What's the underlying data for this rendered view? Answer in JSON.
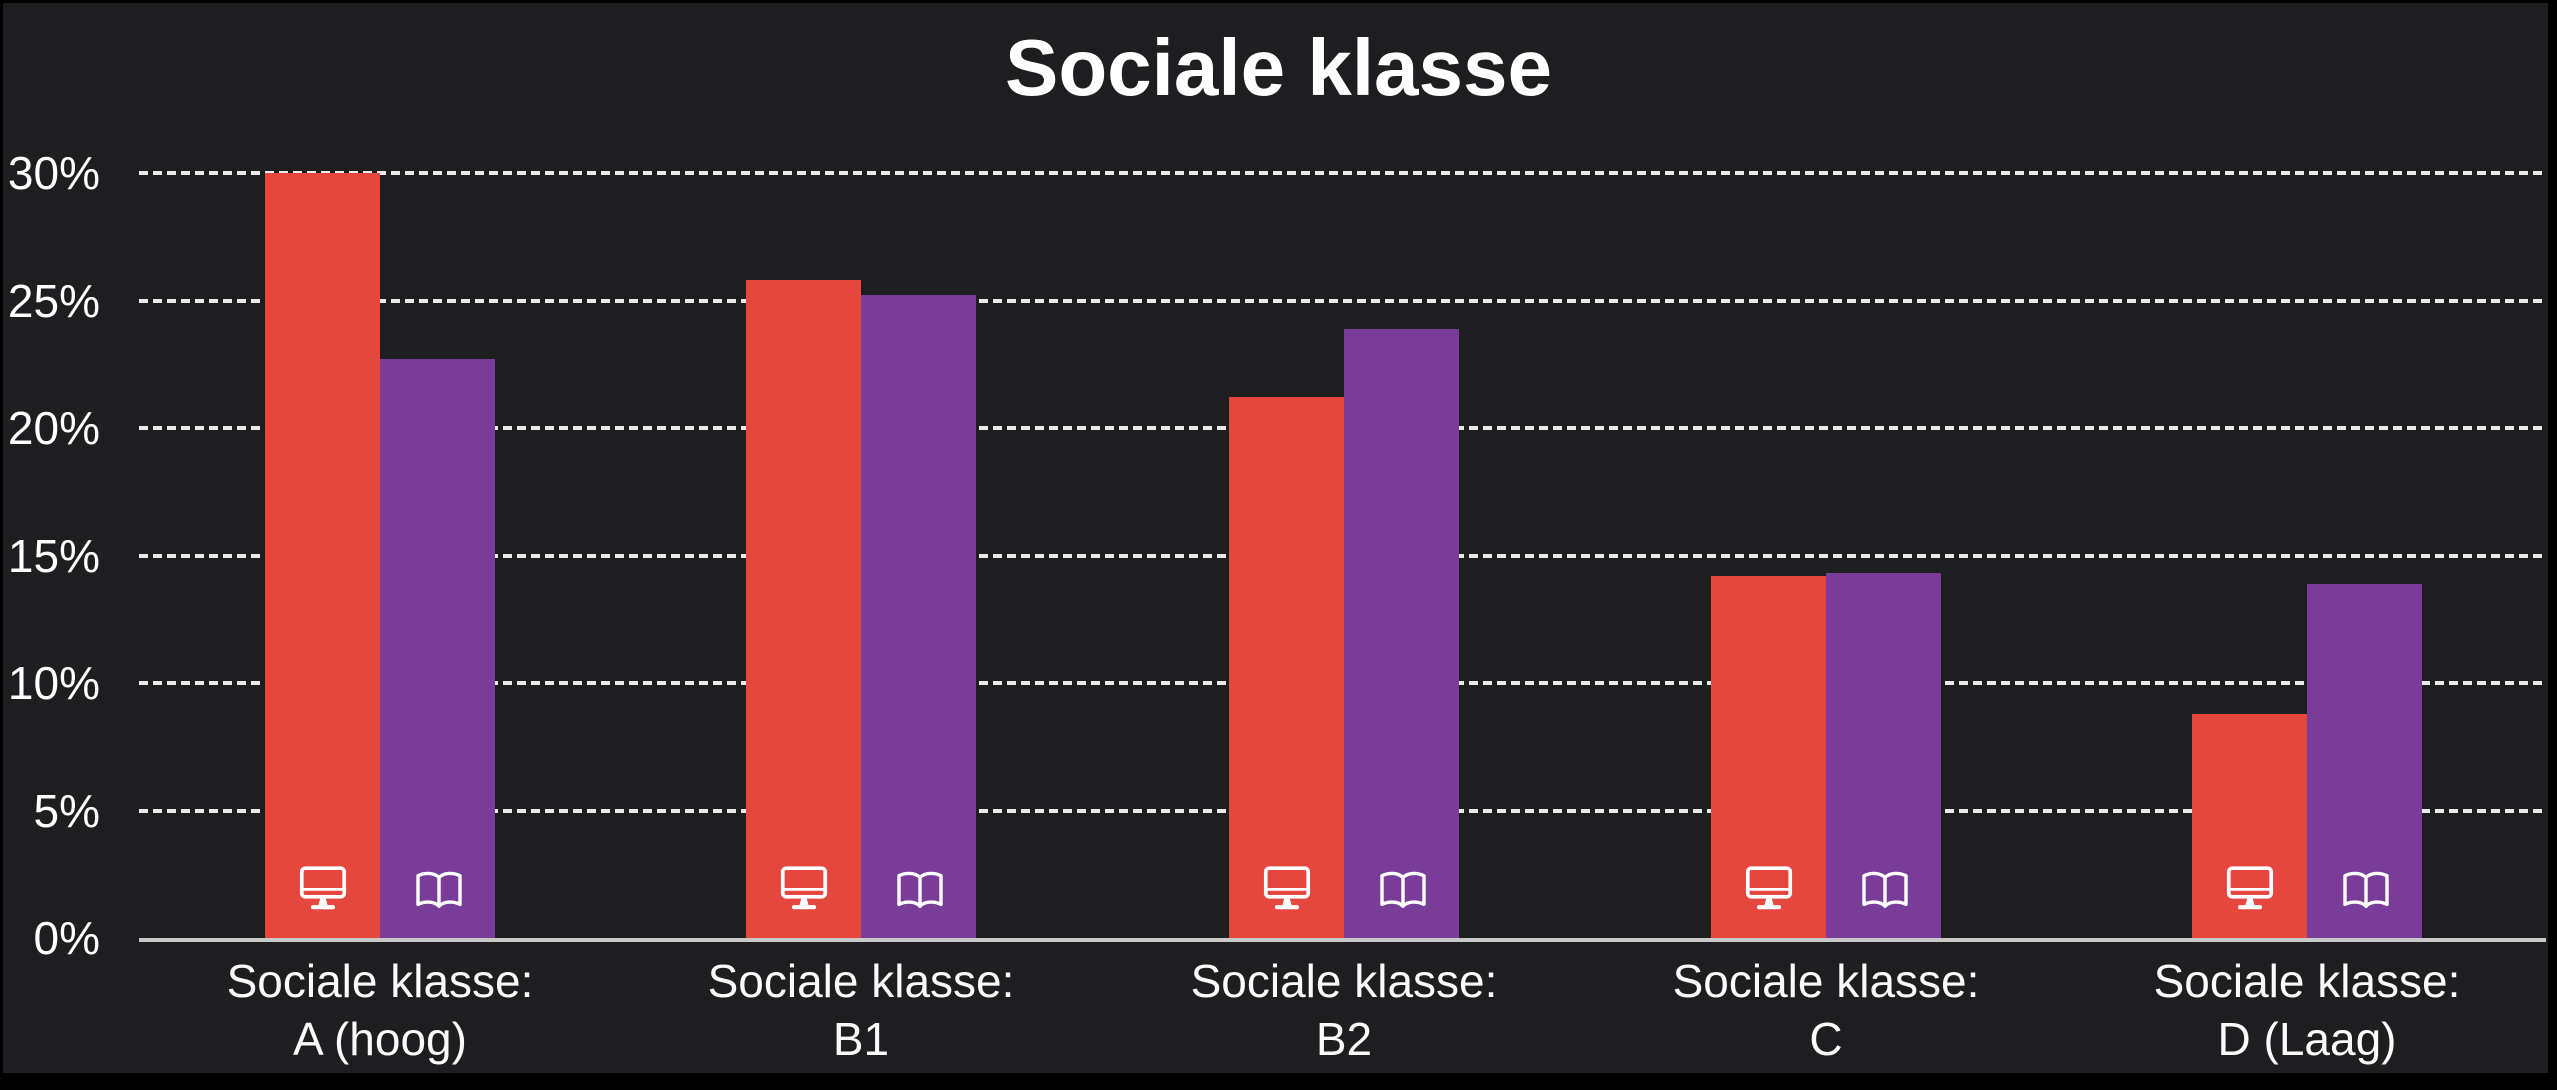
{
  "title": "Sociale klasse",
  "colors": {
    "background": "#1E1E20",
    "frame": "#000000",
    "bar_red": "#E5463E",
    "bar_purple": "#7A3C99",
    "gridline": "#E9E9E9",
    "axis_line": "#C9C9C9",
    "text": "#FFFFFF"
  },
  "y_axis": {
    "tick_labels": [
      "0%",
      "5%",
      "10%",
      "15%",
      "20%",
      "25%",
      "30%"
    ]
  },
  "chart_data": {
    "type": "bar",
    "title": "Sociale klasse",
    "categories": [
      "Sociale klasse: A (hoog)",
      "Sociale klasse: B1",
      "Sociale klasse: B2",
      "Sociale klasse: C",
      "Sociale klasse: D (Laag)"
    ],
    "category_labels": [
      {
        "line1": "Sociale klasse:",
        "line2": "A (hoog)"
      },
      {
        "line1": "Sociale klasse:",
        "line2": "B1"
      },
      {
        "line1": "Sociale klasse:",
        "line2": "B2"
      },
      {
        "line1": "Sociale klasse:",
        "line2": "C"
      },
      {
        "line1": "Sociale klasse:",
        "line2": "D (Laag)"
      }
    ],
    "series": [
      {
        "name": "monitor",
        "icon": "monitor-icon",
        "color": "#E5463E",
        "values": [
          30.0,
          25.8,
          21.2,
          14.2,
          8.8
        ]
      },
      {
        "name": "book",
        "icon": "book-icon",
        "color": "#7A3C99",
        "values": [
          22.7,
          25.2,
          23.9,
          14.3,
          13.9
        ]
      }
    ],
    "xlabel": "",
    "ylabel": "",
    "ylim": [
      0,
      30
    ],
    "yticks": [
      0,
      5,
      10,
      15,
      20,
      25,
      30
    ],
    "ytick_labels": [
      "0%",
      "5%",
      "10%",
      "15%",
      "20%",
      "25%",
      "30%"
    ],
    "grid": "horizontal-dashed",
    "legend": "none"
  }
}
